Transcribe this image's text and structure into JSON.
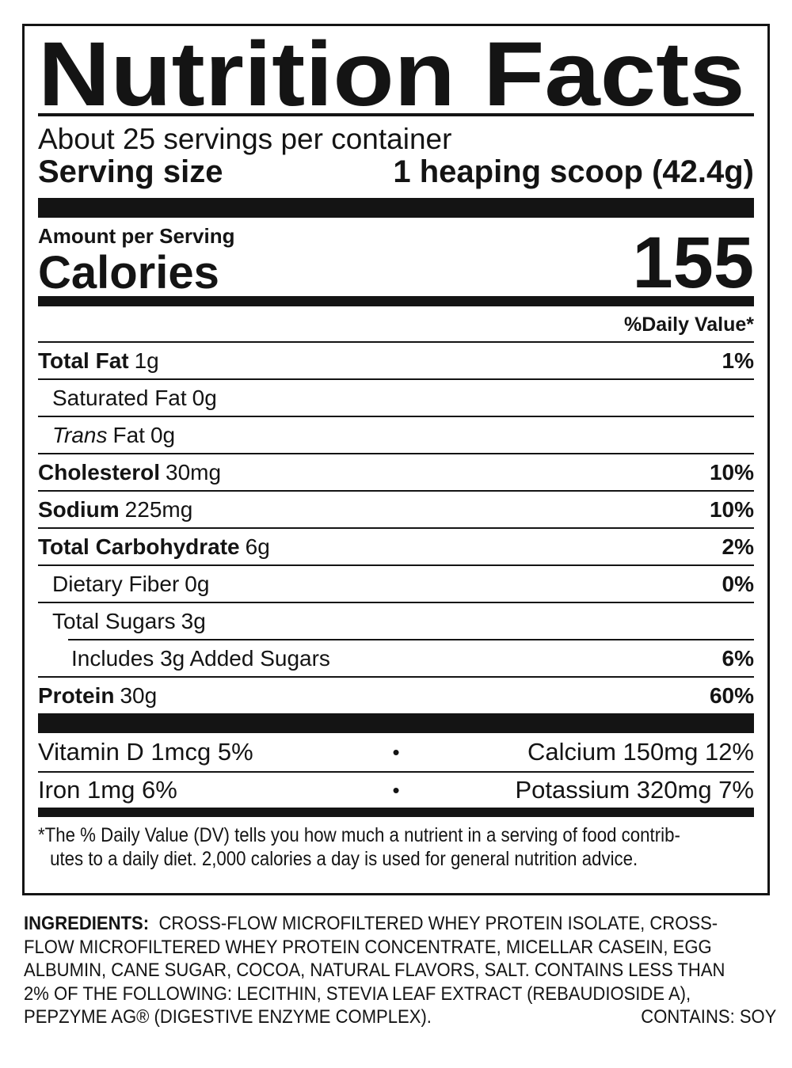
{
  "colors": {
    "ink": "#141414",
    "paper": "#ffffff"
  },
  "nutrition_facts": {
    "title": "Nutrition Facts",
    "servings_per_container": "About 25 servings per container",
    "serving_size": {
      "label": "Serving size",
      "value": "1 heaping scoop (42.4g)"
    },
    "amount_per_serving": "Amount per Serving",
    "calories": {
      "label": "Calories",
      "value": "155"
    },
    "daily_value_header": "%Daily Value*",
    "rows": [
      {
        "name": "Total Fat",
        "amount": "1g",
        "dv": "1%"
      },
      {
        "name": "Saturated Fat",
        "amount": "0g",
        "dv": ""
      },
      {
        "name_italic": "Trans",
        "name": "Fat",
        "amount": "0g",
        "dv": ""
      },
      {
        "name": "Cholesterol",
        "amount": "30mg",
        "dv": "10%"
      },
      {
        "name": "Sodium",
        "amount": "225mg",
        "dv": "10%"
      },
      {
        "name": "Total Carbohydrate",
        "amount": "6g",
        "dv": "2%"
      },
      {
        "name": "Dietary Fiber",
        "amount": "0g",
        "dv": "0%"
      },
      {
        "name": "Total Sugars",
        "amount": "3g",
        "dv": ""
      },
      {
        "name": "Includes 3g Added Sugars",
        "amount": "",
        "dv": "6%"
      },
      {
        "name": "Protein",
        "amount": "30g",
        "dv": "60%"
      }
    ],
    "micronutrients": {
      "bullet": "•",
      "rows": [
        {
          "left": "Vitamin D 1mcg 5%",
          "right": "Calcium 150mg 12%"
        },
        {
          "left": "Iron 1mg 6%",
          "right": "Potassium 320mg 7%"
        }
      ]
    },
    "footnote": {
      "line1": "*The % Daily Value (DV) tells you how much a nutrient in a serving of food contrib-",
      "line2": "utes to a daily diet. 2,000 calories a day is used for general nutrition advice."
    }
  },
  "ingredients": {
    "label": "INGREDIENTS:",
    "lines": [
      "CROSS-FLOW MICROFILTERED WHEY PROTEIN ISOLATE, CROSS-",
      "FLOW MICROFILTERED WHEY PROTEIN CONCENTRATE, MICELLAR CASEIN, EGG",
      "ALBUMIN, CANE SUGAR, COCOA, NATURAL FLAVORS, SALT. CONTAINS LESS THAN",
      "2% OF THE FOLLOWING: LECITHIN, STEVIA LEAF EXTRACT (REBAUDIOSIDE A),"
    ],
    "last_line": "PEPZYME AG® (DIGESTIVE ENZYME COMPLEX).",
    "contains": "CONTAINS: SOY"
  }
}
